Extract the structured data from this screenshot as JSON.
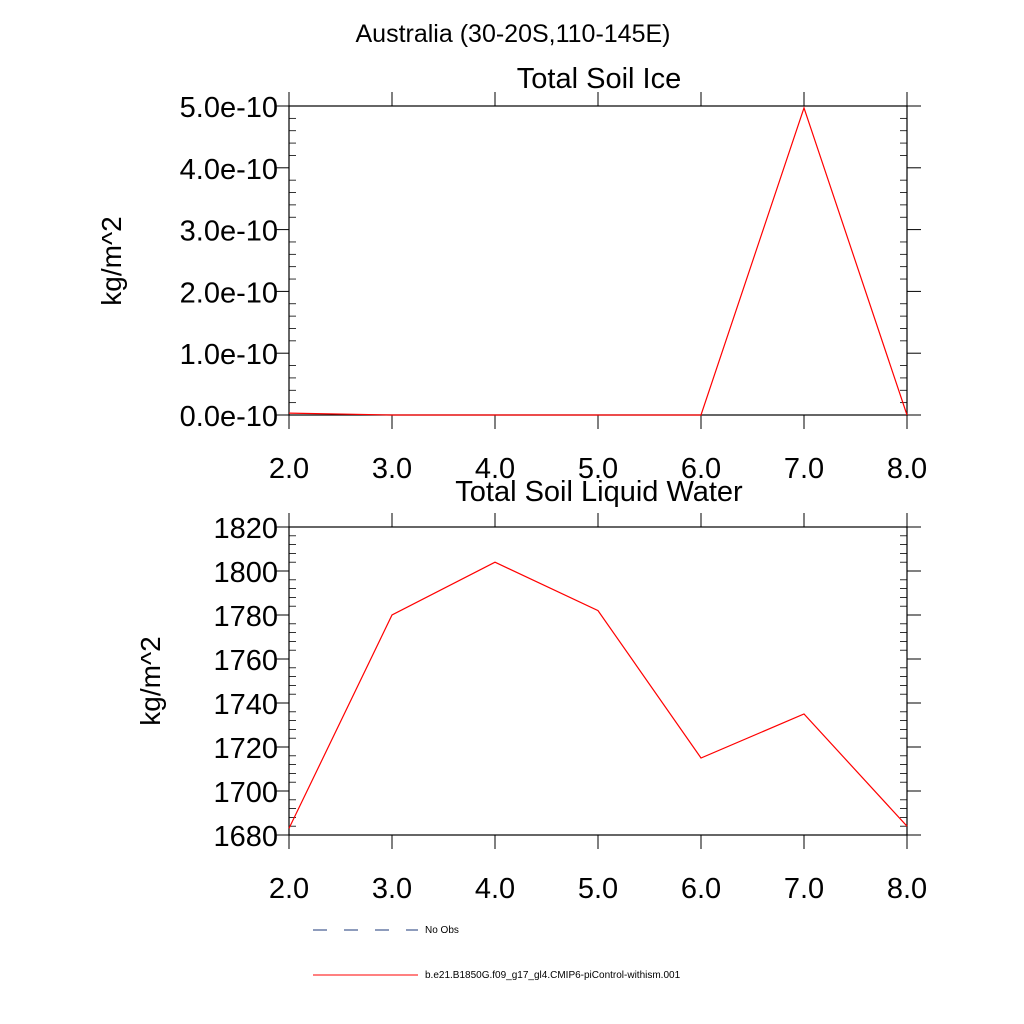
{
  "figure": {
    "title": "Australia (30-20S,110-145E)"
  },
  "chart_data": [
    {
      "type": "line",
      "title": "Total Soil Ice",
      "xlabel": "",
      "ylabel": "kg/m^2",
      "xlim": [
        2.0,
        8.0
      ],
      "ylim": [
        0,
        5e-10
      ],
      "xticks": [
        2,
        3,
        4,
        5,
        6,
        7,
        8
      ],
      "xtick_labels": [
        "2.0",
        "3.0",
        "4.0",
        "5.0",
        "6.0",
        "7.0",
        "8.0"
      ],
      "yticks": [
        0,
        1e-10,
        2e-10,
        3e-10,
        4e-10,
        5e-10
      ],
      "ytick_labels": [
        "0.0e-10",
        "1.0e-10",
        "2.0e-10",
        "3.0e-10",
        "4.0e-10",
        "5.0e-10"
      ],
      "grid": false,
      "x": [
        2,
        3,
        4,
        5,
        6,
        7,
        8
      ],
      "series": [
        {
          "name": "b.e21.B1850G.f09_g17_gl4.CMIP6-piControl-withism.001",
          "color": "#ff0000",
          "values": [
            3e-12,
            0,
            0,
            0,
            0,
            4.97e-10,
            0
          ]
        }
      ]
    },
    {
      "type": "line",
      "title": "Total Soil Liquid Water",
      "xlabel": "",
      "ylabel": "kg/m^2",
      "xlim": [
        2.0,
        8.0
      ],
      "ylim": [
        1680,
        1820
      ],
      "xticks": [
        2,
        3,
        4,
        5,
        6,
        7,
        8
      ],
      "xtick_labels": [
        "2.0",
        "3.0",
        "4.0",
        "5.0",
        "6.0",
        "7.0",
        "8.0"
      ],
      "yticks": [
        1680,
        1700,
        1720,
        1740,
        1760,
        1780,
        1800,
        1820
      ],
      "ytick_labels": [
        "1680",
        "1700",
        "1720",
        "1740",
        "1760",
        "1780",
        "1800",
        "1820"
      ],
      "grid": false,
      "x": [
        2,
        3,
        4,
        5,
        6,
        7,
        8
      ],
      "series": [
        {
          "name": "b.e21.B1850G.f09_g17_gl4.CMIP6-piControl-withism.001",
          "color": "#ff0000",
          "values": [
            1683,
            1780,
            1804,
            1782,
            1715,
            1735,
            1684
          ]
        }
      ]
    }
  ],
  "legend": {
    "placement": "bottom-left",
    "items": [
      {
        "label": "No Obs",
        "style": "dashed",
        "color": "#1e3a78"
      },
      {
        "label": "b.e21.B1850G.f09_g17_gl4.CMIP6-piControl-withism.001",
        "style": "solid",
        "color": "#ff0000"
      }
    ]
  }
}
